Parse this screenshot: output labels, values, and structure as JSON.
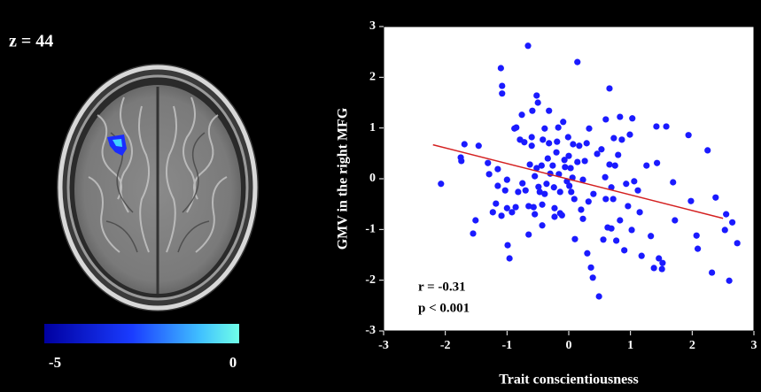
{
  "brain_panel": {
    "slice_label": "z = 44",
    "colorbar": {
      "lim": [
        -5,
        0
      ],
      "ticks": [
        -5,
        0
      ]
    }
  },
  "chart_data": {
    "type": "scatter",
    "xlabel": "Trait conscientiousness",
    "ylabel": "GMV in the right MFG",
    "xlim": [
      -3,
      3
    ],
    "ylim": [
      -3,
      3
    ],
    "xticks": [
      -3,
      -2,
      -1,
      0,
      1,
      2,
      3
    ],
    "yticks": [
      -3,
      -2,
      -1,
      0,
      1,
      2,
      3
    ],
    "color": "#1a1aff",
    "x": [
      -2.07,
      -1.69,
      -1.75,
      -1.74,
      -1.51,
      -1.55,
      -1.46,
      -1.29,
      -1.31,
      -1.23,
      -1.18,
      -1.15,
      -1.15,
      -1.1,
      -1.08,
      -1.09,
      -1.08,
      -1.0,
      -1.03,
      -1.0,
      -0.99,
      -0.96,
      -0.92,
      -0.88,
      -0.86,
      -0.85,
      -0.82,
      -0.79,
      -0.76,
      -0.75,
      -0.72,
      -0.7,
      -0.66,
      -0.65,
      -0.65,
      -0.63,
      -0.6,
      -0.6,
      -0.59,
      -0.57,
      -0.55,
      -0.55,
      -0.52,
      -0.52,
      -0.5,
      -0.49,
      -0.47,
      -0.44,
      -0.43,
      -0.43,
      -0.42,
      -0.39,
      -0.39,
      -0.36,
      -0.34,
      -0.32,
      -0.32,
      -0.3,
      -0.26,
      -0.24,
      -0.23,
      -0.23,
      -0.2,
      -0.19,
      -0.17,
      -0.16,
      -0.14,
      -0.14,
      -0.11,
      -0.09,
      -0.07,
      -0.06,
      -0.03,
      -0.01,
      0.0,
      0.01,
      0.03,
      0.04,
      0.06,
      0.07,
      0.09,
      0.1,
      0.14,
      0.14,
      0.17,
      0.2,
      0.23,
      0.23,
      0.26,
      0.29,
      0.3,
      0.32,
      0.33,
      0.36,
      0.39,
      0.4,
      0.46,
      0.49,
      0.53,
      0.56,
      0.59,
      0.6,
      0.6,
      0.63,
      0.66,
      0.66,
      0.69,
      0.69,
      0.72,
      0.73,
      0.75,
      0.77,
      0.8,
      0.83,
      0.83,
      0.86,
      0.9,
      0.93,
      0.96,
      0.99,
      1.02,
      1.03,
      1.06,
      1.12,
      1.15,
      1.18,
      1.26,
      1.33,
      1.38,
      1.42,
      1.43,
      1.46,
      1.51,
      1.52,
      1.58,
      1.69,
      1.72,
      1.94,
      1.98,
      2.07,
      2.09,
      2.25,
      2.32,
      2.38,
      2.53,
      2.55,
      2.6,
      2.65,
      2.73
    ],
    "values": [
      -0.1,
      0.68,
      0.42,
      0.35,
      -0.82,
      -1.08,
      0.65,
      0.09,
      0.31,
      -0.66,
      -0.49,
      0.19,
      -0.14,
      2.18,
      1.83,
      -0.73,
      1.68,
      -0.02,
      -0.23,
      -0.58,
      -1.31,
      -1.57,
      -0.66,
      0.99,
      -0.56,
      1.01,
      -0.26,
      0.77,
      1.26,
      -0.09,
      0.72,
      -0.23,
      2.62,
      -0.54,
      -1.1,
      0.28,
      0.82,
      0.65,
      1.34,
      -0.56,
      -0.7,
      0.05,
      0.21,
      1.64,
      1.5,
      -0.16,
      -0.26,
      0.26,
      -0.51,
      -0.92,
      0.77,
      -0.3,
      0.99,
      -0.1,
      0.4,
      1.34,
      0.7,
      0.1,
      0.26,
      -0.17,
      -0.58,
      -0.75,
      0.52,
      0.73,
      1.01,
      0.09,
      -0.26,
      -0.68,
      -0.72,
      1.12,
      0.37,
      0.23,
      -0.05,
      0.82,
      0.45,
      -0.14,
      0.21,
      -0.26,
      0.02,
      0.68,
      -0.4,
      -1.19,
      0.33,
      2.3,
      0.65,
      -0.61,
      -0.79,
      -0.02,
      0.35,
      0.7,
      -1.47,
      -0.45,
      0.99,
      -1.75,
      -1.95,
      -0.3,
      0.49,
      -2.32,
      0.58,
      -1.2,
      0.03,
      1.17,
      -0.4,
      -0.96,
      1.78,
      0.28,
      -0.17,
      -0.98,
      -0.4,
      0.8,
      0.26,
      -1.22,
      0.47,
      -0.82,
      1.22,
      0.77,
      -1.41,
      -0.1,
      -0.54,
      0.87,
      -1.01,
      1.19,
      -0.05,
      -0.23,
      -0.66,
      -1.52,
      0.26,
      -1.13,
      -1.76,
      1.03,
      0.31,
      -1.57,
      -1.78,
      -1.66,
      1.03,
      -0.07,
      -0.82,
      0.86,
      -0.44,
      -1.12,
      -1.38,
      0.56,
      -1.85,
      -0.37,
      -1.01,
      -0.7,
      -2.01,
      -0.86,
      -1.27
    ],
    "fit_line": {
      "x": [
        -2.2,
        2.5
      ],
      "values": [
        0.67,
        -0.78
      ],
      "color": "#d42020"
    },
    "annotations": [
      "r = -0.31",
      "p < 0.001"
    ]
  }
}
